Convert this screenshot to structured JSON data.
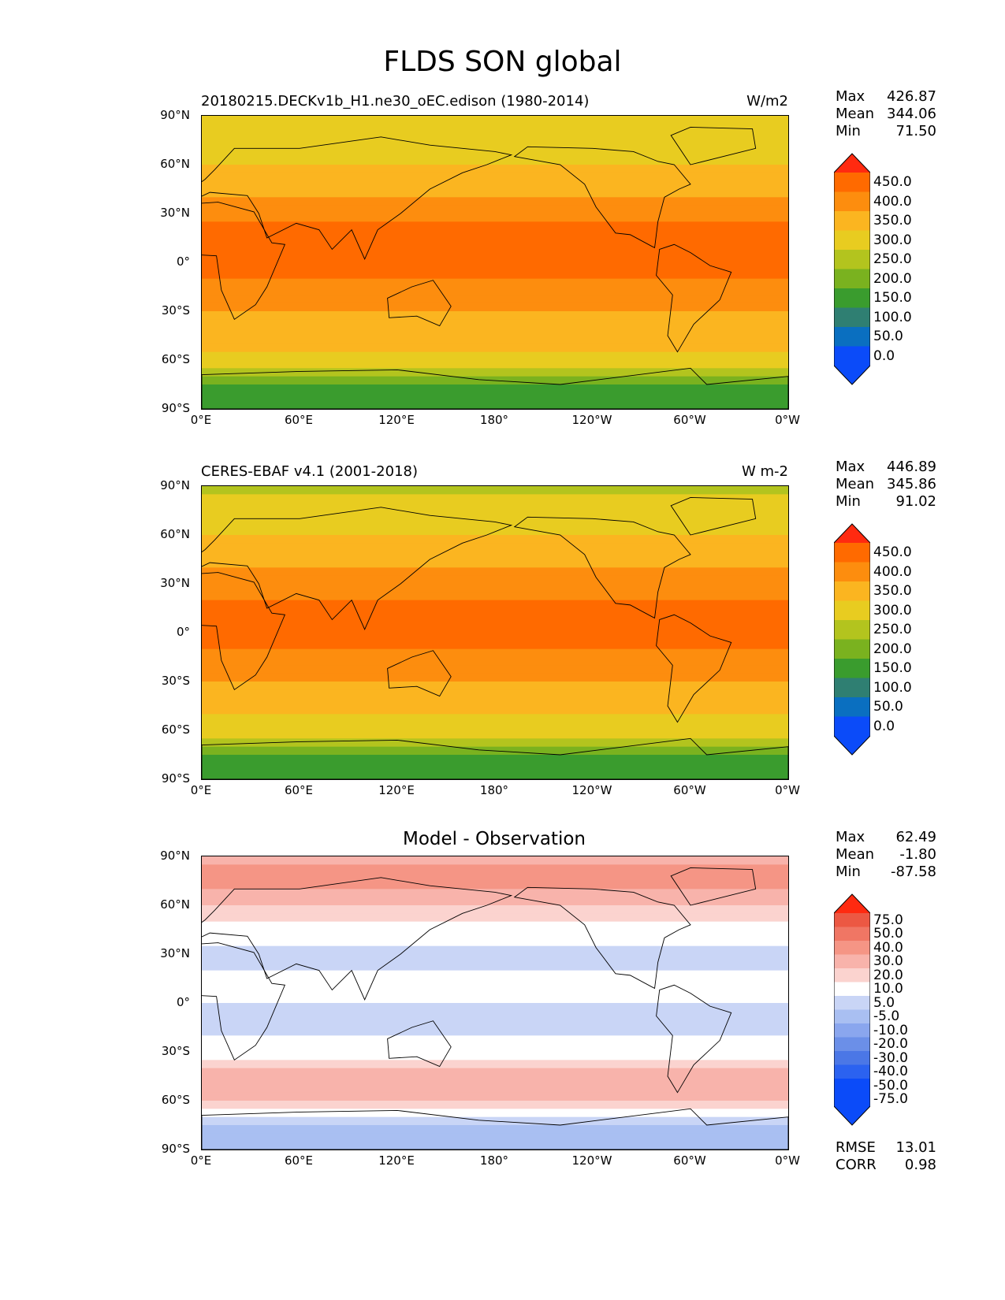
{
  "main_title": "FLDS SON global",
  "chart_data": [
    {
      "type": "heatmap",
      "title_left": "20180215.DECKv1b_H1.ne30_oEC.edison (1980-2014)",
      "title_right": "W/m2",
      "stats": {
        "max_label": "Max",
        "max": "426.87",
        "mean_label": "Mean",
        "mean": "344.06",
        "min_label": "Min",
        "min": "71.50"
      },
      "colorbar_ticks": [
        "450.0",
        "400.0",
        "350.0",
        "300.0",
        "250.0",
        "200.0",
        "150.0",
        "100.0",
        "50.0",
        "0.0"
      ],
      "zonal_profile": {
        "lat": [
          90,
          80,
          70,
          60,
          50,
          40,
          30,
          20,
          10,
          0,
          -10,
          -20,
          -30,
          -40,
          -50,
          -60,
          -65,
          -70,
          -75,
          -80,
          -90
        ],
        "value": [
          240,
          280,
          290,
          300,
          320,
          345,
          380,
          410,
          420,
          420,
          400,
          375,
          350,
          330,
          315,
          290,
          250,
          210,
          140,
          100,
          140
        ]
      }
    },
    {
      "type": "heatmap",
      "title_left": "CERES-EBAF v4.1 (2001-2018)",
      "title_right": "W m-2",
      "stats": {
        "max_label": "Max",
        "max": "446.89",
        "mean_label": "Mean",
        "mean": "345.86",
        "min_label": "Min",
        "min": "91.02"
      },
      "colorbar_ticks": [
        "450.0",
        "400.0",
        "350.0",
        "300.0",
        "250.0",
        "200.0",
        "150.0",
        "100.0",
        "50.0",
        "0.0"
      ],
      "zonal_profile": {
        "lat": [
          90,
          80,
          70,
          60,
          50,
          40,
          30,
          20,
          10,
          0,
          -10,
          -20,
          -30,
          -40,
          -50,
          -60,
          -65,
          -70,
          -75,
          -80,
          -90
        ],
        "value": [
          225,
          265,
          280,
          295,
          315,
          345,
          375,
          405,
          420,
          420,
          400,
          375,
          345,
          320,
          300,
          280,
          240,
          200,
          130,
          110,
          150
        ]
      }
    },
    {
      "type": "heatmap",
      "title_center": "Model - Observation",
      "stats": {
        "max_label": "Max",
        "max": "62.49",
        "mean_label": "Mean",
        "mean": "-1.80",
        "min_label": "Min",
        "min": "-87.58",
        "rmse_label": "RMSE",
        "rmse": "13.01",
        "corr_label": "CORR",
        "corr": "0.98"
      },
      "colorbar_ticks": [
        "75.0",
        "50.0",
        "40.0",
        "30.0",
        "20.0",
        "10.0",
        "5.0",
        "-5.0",
        "-10.0",
        "-20.0",
        "-30.0",
        "-40.0",
        "-50.0",
        "-75.0"
      ],
      "zonal_profile": {
        "lat": [
          90,
          80,
          70,
          60,
          50,
          40,
          30,
          20,
          10,
          0,
          -10,
          -20,
          -30,
          -40,
          -50,
          -60,
          -65,
          -70,
          -75,
          -80,
          -90
        ],
        "value": [
          15,
          25,
          20,
          10,
          5,
          0,
          -10,
          -5,
          0,
          -5,
          -10,
          -5,
          0,
          12,
          15,
          10,
          5,
          -5,
          -12,
          -15,
          -10
        ]
      }
    }
  ],
  "axes": {
    "lat_ticks": [
      "90°N",
      "60°N",
      "30°N",
      "0°",
      "30°S",
      "60°S",
      "90°S"
    ],
    "lon_ticks": [
      "0°E",
      "60°E",
      "120°E",
      "180°",
      "120°W",
      "60°W",
      "0°W"
    ]
  },
  "colors": {
    "abs_levels": [
      "#0b4bf9",
      "#0a6fc0",
      "#2f7f72",
      "#3a9c2e",
      "#7ab21f",
      "#b3c41e",
      "#e8cc20",
      "#fbb520",
      "#fd8d0e",
      "#ff6a00",
      "#ff2a10"
    ],
    "diff_levels": [
      "#0b4bf9",
      "#2b62f0",
      "#4b77e6",
      "#6b8fe8",
      "#8aa6ee",
      "#a9bff2",
      "#c9d5f6",
      "#ffffff",
      "#fbd3cf",
      "#f8b3ab",
      "#f59585",
      "#f07664",
      "#ec5843",
      "#ff2a10"
    ],
    "land_outline": "#000000"
  }
}
